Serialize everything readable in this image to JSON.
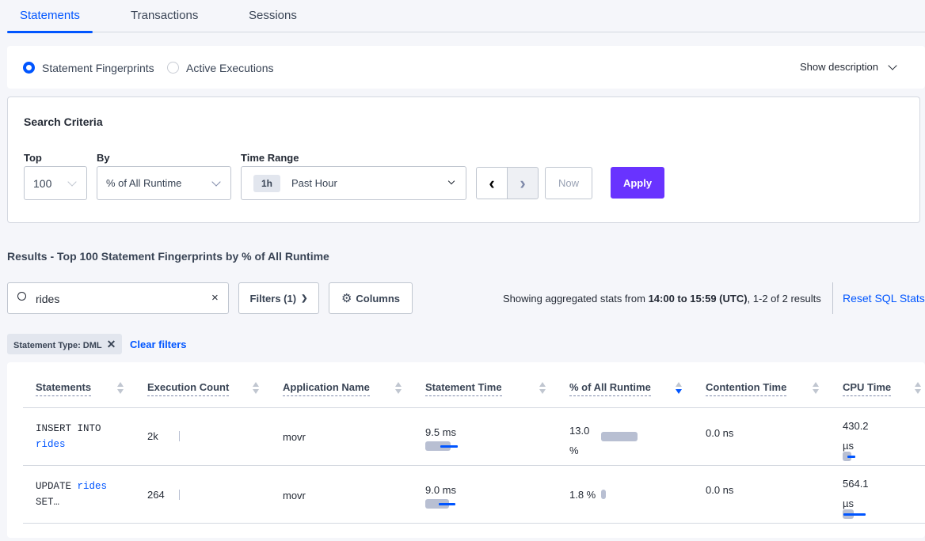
{
  "tabs": [
    {
      "label": "Statements",
      "active": true
    },
    {
      "label": "Transactions"
    },
    {
      "label": "Sessions"
    }
  ],
  "view_toggle": {
    "options": [
      "Statement Fingerprints",
      "Active Executions"
    ],
    "selected": "Statement Fingerprints",
    "show_description": "Show description"
  },
  "search_criteria": {
    "title": "Search Criteria",
    "top_label": "Top",
    "top_value": "100",
    "by_label": "By",
    "by_value": "% of All Runtime",
    "time_range_label": "Time Range",
    "time_badge": "1h",
    "time_value": "Past Hour",
    "now_label": "Now",
    "apply_label": "Apply"
  },
  "results": {
    "title": "Results - Top 100 Statement Fingerprints by % of All Runtime",
    "search_value": "rides",
    "filters_label": "Filters (1)",
    "columns_label": "Columns",
    "summary_prefix": "Showing aggregated stats from ",
    "summary_range": "14:00 to 15:59 (UTC)",
    "summary_suffix": ", 1-2 of 2 results",
    "reset_label": "Reset SQL Stats",
    "filter_chip": "Statement Type: DML",
    "clear_filters": "Clear filters"
  },
  "colors": {
    "accent": "#0055ff",
    "apply": "#6933ff"
  },
  "table": {
    "headers": [
      "Statements",
      "Execution Count",
      "Application Name",
      "Statement Time",
      "% of All Runtime",
      "Contention Time",
      "CPU Time"
    ],
    "sorted_column": "% of All Runtime",
    "sort_direction": "descending",
    "rows": [
      {
        "stmt_a": "INSERT INTO",
        "stmt_b": "rides",
        "exec": "2k",
        "app": "movr",
        "stmt_time": "9.5 ms",
        "pct_a": "13.0",
        "pct_b": "%",
        "pct_value": 13.0,
        "contention": "0.0 ns",
        "cpu_a": "430.2",
        "cpu_b": "µs"
      },
      {
        "stmt_a": "UPDATE",
        "stmt_b": "rides",
        "stmt_c": "SET…",
        "exec": "264",
        "app": "movr",
        "stmt_time": "9.0 ms",
        "pct": "1.8 %",
        "pct_value": 1.8,
        "contention": "0.0 ns",
        "cpu_a": "564.1",
        "cpu_b": "µs"
      }
    ]
  }
}
